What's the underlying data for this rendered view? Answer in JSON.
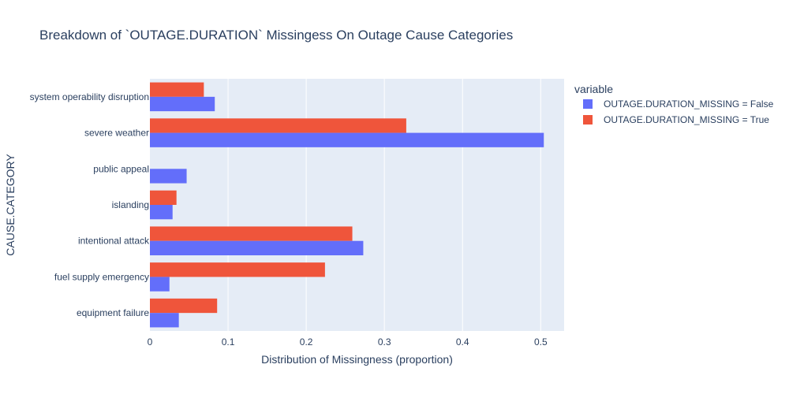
{
  "chart_data": {
    "type": "bar",
    "orientation": "horizontal",
    "title": "Breakdown of `OUTAGE.DURATION` Missingess On Outage Cause Categories",
    "xlabel": "Distribution of Missingness (proportion)",
    "ylabel": "CAUSE.CATEGORY",
    "xlim": [
      0,
      0.53
    ],
    "x_ticks": [
      0,
      0.1,
      0.2,
      0.3,
      0.4,
      0.5
    ],
    "x_tick_labels": [
      "0",
      "0.1",
      "0.2",
      "0.3",
      "0.4",
      "0.5"
    ],
    "grid": true,
    "legend": {
      "title": "variable",
      "position": "right"
    },
    "categories": [
      "equipment failure",
      "fuel supply emergency",
      "intentional attack",
      "islanding",
      "public appeal",
      "severe weather",
      "system operability disruption"
    ],
    "series": [
      {
        "name": "OUTAGE.DURATION_MISSING = False",
        "color": "#636efa",
        "values": [
          0.037,
          0.025,
          0.273,
          0.029,
          0.047,
          0.504,
          0.083
        ]
      },
      {
        "name": "OUTAGE.DURATION_MISSING = True",
        "color": "#ef553b",
        "values": [
          0.086,
          0.224,
          0.259,
          0.034,
          0.0,
          0.328,
          0.069
        ]
      }
    ]
  }
}
